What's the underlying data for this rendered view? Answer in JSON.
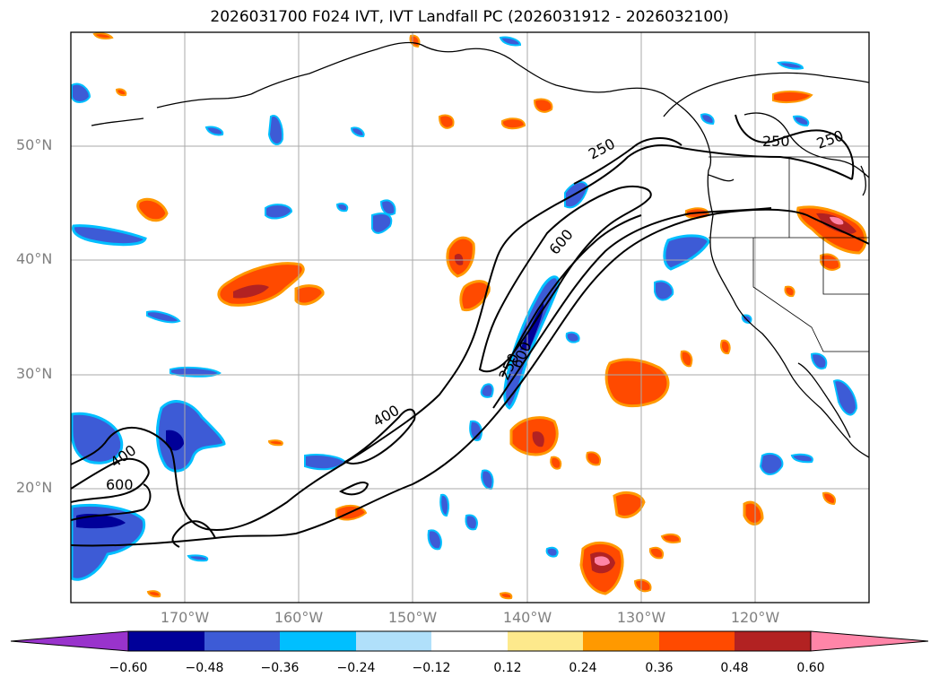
{
  "title": "2026031700 F024 IVT, IVT Landfall PC (2026031912 - 2026032100)",
  "map": {
    "lon_range": [
      -180,
      -110
    ],
    "lat_range": [
      10,
      60
    ],
    "lon_ticks": [
      {
        "value": -170,
        "label": "170°W"
      },
      {
        "value": -160,
        "label": "160°W"
      },
      {
        "value": -150,
        "label": "150°W"
      },
      {
        "value": -140,
        "label": "140°W"
      },
      {
        "value": -130,
        "label": "130°W"
      },
      {
        "value": -120,
        "label": "120°W"
      }
    ],
    "lat_ticks": [
      {
        "value": 50,
        "label": "50°N"
      },
      {
        "value": 40,
        "label": "40°N"
      },
      {
        "value": 30,
        "label": "30°N"
      },
      {
        "value": 20,
        "label": "20°N"
      }
    ],
    "ivt_contour_labels": [
      "250",
      "250",
      "250",
      "600",
      "600",
      "400",
      "400",
      "600",
      "250"
    ]
  },
  "colorbar": {
    "colors": [
      "#9933cc",
      "#000099",
      "#3d5bd6",
      "#00bfff",
      "#b0e0fa",
      "#ffffff",
      "#fde98c",
      "#ff9900",
      "#ff4a00",
      "#b22222",
      "#ff85a8"
    ],
    "tick_labels": [
      "−0.60",
      "−0.48",
      "−0.36",
      "−0.24",
      "−0.12",
      "0.12",
      "0.24",
      "0.36",
      "0.48",
      "0.60"
    ]
  }
}
